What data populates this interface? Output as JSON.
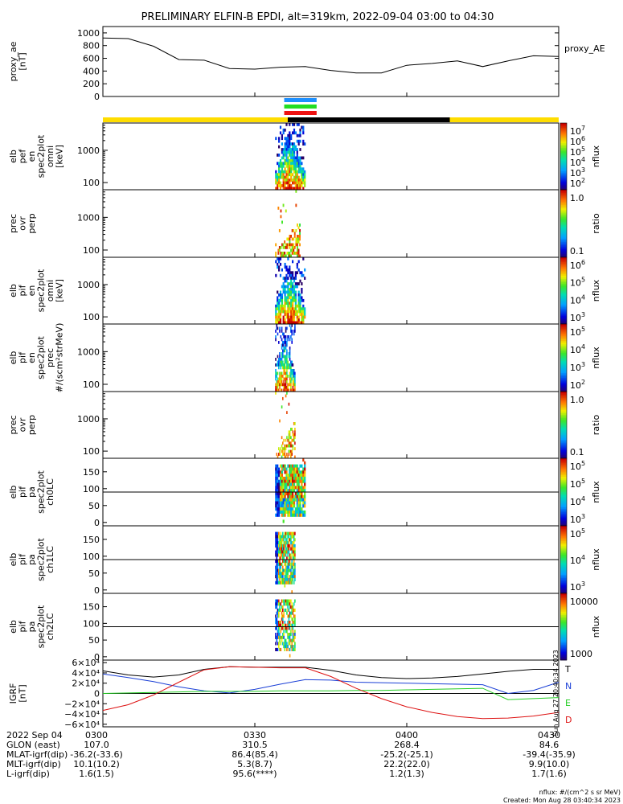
{
  "title": "PRELIMINARY ELFIN-B EPDI, alt=319km, 2022-09-04 03:00 to 04:30",
  "colors": {
    "sun_bar": "#ffdd00",
    "shadow_bar": "#000000",
    "marker_blue": "#1e90ff",
    "marker_green": "#22dd22",
    "marker_red": "#ee1111",
    "igrf_T": "#000000",
    "igrf_N": "#1a3fd6",
    "igrf_E": "#22cc22",
    "igrf_D": "#dd1111"
  },
  "panels": {
    "ae": {
      "ylabel": [
        "proxy_ae",
        "[nT]"
      ],
      "yticks": [
        "1000",
        "800",
        "600",
        "400",
        "200",
        "0"
      ],
      "legend": "proxy_AE"
    },
    "p1": {
      "ylabel": [
        "elb",
        "pef",
        "en",
        "spec2plot",
        "omni",
        "[keV]"
      ],
      "yticks": [
        "1000",
        "100"
      ],
      "cbar_ticks": [
        "10",
        "10",
        "10",
        "10",
        "10",
        "10"
      ],
      "cbar_exps": [
        "7",
        "6",
        "5",
        "4",
        "3",
        "2"
      ],
      "cbar_label": "nflux"
    },
    "p2": {
      "ylabel": [
        "prec",
        "ovr",
        "perp"
      ],
      "yticks": [
        "1000",
        "100"
      ],
      "cbar_ticks": [
        "1.0",
        "0.1"
      ],
      "cbar_label": "ratio"
    },
    "p3": {
      "ylabel": [
        "elb",
        "pif",
        "en",
        "spec2plot",
        "omni",
        "[keV]"
      ],
      "yticks": [
        "1000",
        "100"
      ],
      "cbar_ticks": [
        "10",
        "10",
        "10",
        "10"
      ],
      "cbar_exps": [
        "6",
        "5",
        "4",
        "3"
      ],
      "cbar_label": "nflux"
    },
    "p4": {
      "ylabel": [
        "elb",
        "pif",
        "en",
        "spec2plot",
        "prec",
        "#/(scm²strMeV)"
      ],
      "yticks": [
        "1000",
        "100"
      ],
      "cbar_ticks": [
        "10",
        "10",
        "10",
        "10"
      ],
      "cbar_exps": [
        "5",
        "4",
        "3",
        "2"
      ],
      "cbar_label": "nflux"
    },
    "p5": {
      "ylabel": [
        "prec",
        "ovr",
        "perp"
      ],
      "yticks": [
        "1000",
        "100"
      ],
      "cbar_ticks": [
        "1.0",
        "0.1"
      ],
      "cbar_label": "ratio"
    },
    "p6": {
      "ylabel": [
        "elb",
        "pif",
        "pa",
        "spec2plot",
        "ch0LC"
      ],
      "yticks": [
        "150",
        "100",
        "50",
        "0"
      ],
      "cbar_ticks": [
        "10",
        "10",
        "10",
        "10"
      ],
      "cbar_exps": [
        "5",
        "5",
        "4",
        "3"
      ],
      "cbar_label": "nflux"
    },
    "p7": {
      "ylabel": [
        "elb",
        "pif",
        "pa",
        "spec2plot",
        "ch1LC"
      ],
      "yticks": [
        "150",
        "100",
        "50",
        "0"
      ],
      "cbar_ticks": [
        "10",
        "10",
        "10"
      ],
      "cbar_exps": [
        "5",
        "4",
        "3"
      ],
      "cbar_label": "nflux"
    },
    "p8": {
      "ylabel": [
        "elb",
        "pif",
        "pa",
        "spec2plot",
        "ch2LC"
      ],
      "yticks": [
        "150",
        "100",
        "50",
        "0"
      ],
      "cbar_ticks": [
        "10000",
        "1000"
      ],
      "cbar_label": "nflux"
    },
    "p9": {
      "ylabel": [
        "IGRF",
        "[nT]"
      ],
      "yticks": [
        "6×10⁴",
        "4×10⁴",
        "2×10⁴",
        "0",
        "−2×10⁴",
        "−4×10⁴",
        "−6×10⁴"
      ],
      "legend": [
        "T",
        "N",
        "E",
        "D"
      ],
      "side_stamp": "Sun Aug 27 20:40:34 2023"
    }
  },
  "footer": {
    "rows": [
      [
        "2022 Sep 04",
        "0300",
        "0330",
        "0400",
        "0430"
      ],
      [
        "GLON (east)",
        "107.0",
        "310.5",
        "268.4",
        "84.6"
      ],
      [
        "MLAT-igrf(dip)",
        "-36.2(-33.6)",
        "86.4(85.4)",
        "-25.2(-25.1)",
        "-39.4(-35.9)"
      ],
      [
        "MLT-igrf(dip)",
        "10.1(10.2)",
        "5.3(8.7)",
        "22.2(22.0)",
        "9.9(10.0)"
      ],
      [
        "L-igrf(dip)",
        "1.6(1.5)",
        "95.6(****)",
        "1.2(1.3)",
        "1.7(1.6)"
      ]
    ],
    "note1": "nflux: #/(cm^2 s sr MeV)",
    "note2": "Created: Mon Aug 28 03:40:34 2023"
  },
  "chart_data": [
    {
      "type": "line",
      "name": "proxy_AE",
      "x": [
        "03:00",
        "03:05",
        "03:10",
        "03:15",
        "03:20",
        "03:25",
        "03:30",
        "03:35",
        "03:40",
        "03:45",
        "03:50",
        "03:55",
        "04:00",
        "04:05",
        "04:10",
        "04:15",
        "04:20",
        "04:25",
        "04:30"
      ],
      "values": [
        920,
        910,
        790,
        580,
        570,
        440,
        430,
        460,
        470,
        410,
        370,
        370,
        490,
        520,
        560,
        470,
        560,
        640,
        630
      ],
      "ylim": [
        0,
        1100
      ],
      "ylabel": "proxy_ae [nT]"
    },
    {
      "type": "heatmap",
      "name": "elb pef en spec2plot omni",
      "ylabel": "[keV]",
      "yscale": "log",
      "ylim": [
        60,
        7000
      ],
      "active_time_range": [
        "03:34",
        "03:40"
      ],
      "colorbar": {
        "label": "nflux",
        "range": [
          100,
          10000000
        ],
        "scale": "log"
      }
    },
    {
      "type": "heatmap",
      "name": "prec ovr perp (electrons)",
      "yscale": "log",
      "ylim": [
        60,
        7000
      ],
      "active_time_range": [
        "03:34",
        "03:39"
      ],
      "colorbar": {
        "label": "ratio",
        "range": [
          0.01,
          3
        ],
        "scale": "log"
      }
    },
    {
      "type": "heatmap",
      "name": "elb pif en spec2plot omni",
      "ylabel": "[keV]",
      "yscale": "log",
      "ylim": [
        60,
        7000
      ],
      "active_time_range": [
        "03:34",
        "03:40"
      ],
      "colorbar": {
        "label": "nflux",
        "range": [
          100,
          1000000
        ],
        "scale": "log"
      }
    },
    {
      "type": "heatmap",
      "name": "elb pif en spec2plot prec",
      "ylabel": "#/(scm²strMeV)",
      "yscale": "log",
      "ylim": [
        60,
        7000
      ],
      "active_time_range": [
        "03:34",
        "03:38"
      ],
      "colorbar": {
        "label": "nflux",
        "range": [
          100,
          100000
        ],
        "scale": "log"
      }
    },
    {
      "type": "heatmap",
      "name": "prec ovr perp (ions)",
      "yscale": "log",
      "ylim": [
        60,
        7000
      ],
      "active_time_range": [
        "03:34",
        "03:38"
      ],
      "colorbar": {
        "label": "ratio",
        "range": [
          0.01,
          3
        ],
        "scale": "log"
      }
    },
    {
      "type": "heatmap",
      "name": "elb pif pa spec2plot ch0LC",
      "ylim": [
        -10,
        190
      ],
      "loss_cone_line": 90,
      "active_time_range": [
        "03:34",
        "03:40"
      ],
      "colorbar": {
        "label": "nflux",
        "range": [
          1000,
          100000
        ],
        "scale": "log"
      }
    },
    {
      "type": "heatmap",
      "name": "elb pif pa spec2plot ch1LC",
      "ylim": [
        -10,
        190
      ],
      "loss_cone_line": 90,
      "active_time_range": [
        "03:34",
        "03:38"
      ],
      "colorbar": {
        "label": "nflux",
        "range": [
          1000,
          100000
        ],
        "scale": "log"
      }
    },
    {
      "type": "heatmap",
      "name": "elb pif pa spec2plot ch2LC",
      "ylim": [
        -10,
        190
      ],
      "loss_cone_line": 90,
      "active_time_range": [
        "03:34",
        "03:38"
      ],
      "colorbar": {
        "label": "nflux",
        "range": [
          500,
          20000
        ],
        "scale": "log"
      }
    },
    {
      "type": "line",
      "name": "IGRF",
      "ylabel": "IGRF [nT]",
      "ylim": [
        -65000,
        65000
      ],
      "x": [
        "03:00",
        "03:05",
        "03:10",
        "03:15",
        "03:20",
        "03:25",
        "03:30",
        "03:35",
        "03:40",
        "03:45",
        "03:50",
        "03:55",
        "04:00",
        "04:05",
        "04:10",
        "04:15",
        "04:20",
        "04:25",
        "04:30"
      ],
      "series": [
        {
          "name": "T",
          "values": [
            44000,
            36000,
            32000,
            36000,
            47000,
            52000,
            51000,
            51000,
            51000,
            45000,
            36000,
            31000,
            29000,
            30000,
            33000,
            38000,
            43000,
            47000,
            47000
          ]
        },
        {
          "name": "N",
          "values": [
            38000,
            31000,
            23000,
            13000,
            5000,
            1000,
            8000,
            18000,
            27000,
            26000,
            22000,
            21000,
            20000,
            19000,
            18000,
            17000,
            0,
            6000,
            22000
          ]
        },
        {
          "name": "E",
          "values": [
            0,
            1000,
            2000,
            3000,
            4000,
            4000,
            4000,
            5000,
            5000,
            5000,
            6000,
            6000,
            7000,
            8000,
            9000,
            10000,
            -12000,
            -10000,
            -8000
          ]
        },
        {
          "name": "D",
          "values": [
            -33000,
            -22000,
            -3000,
            22000,
            46000,
            52000,
            51000,
            50000,
            50000,
            33000,
            10000,
            -10000,
            -26000,
            -37000,
            -45000,
            -49000,
            -48000,
            -44000,
            -37000
          ]
        }
      ]
    }
  ]
}
